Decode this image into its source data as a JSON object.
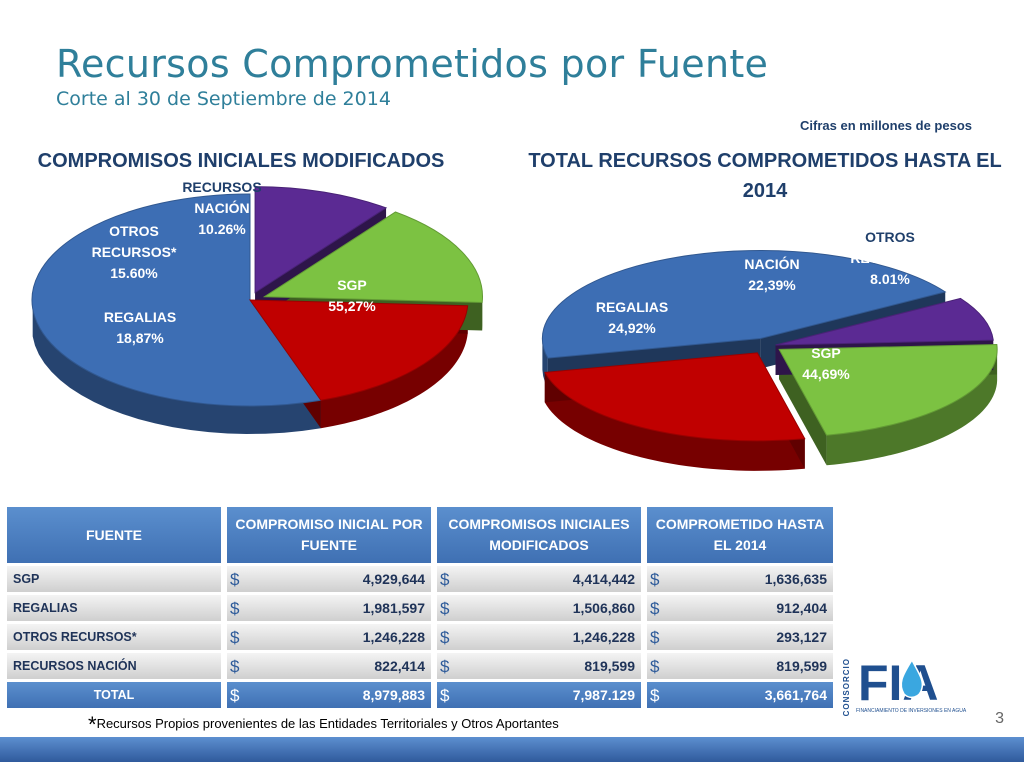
{
  "header": {
    "title": "Recursos Comprometidos por Fuente",
    "subtitle": "Corte al 30 de Septiembre de 2014",
    "units": "Cifras en millones de pesos"
  },
  "chart_data": [
    {
      "type": "pie",
      "title": "COMPROMISOS INICIALES MODIFICADOS",
      "slices": [
        {
          "name": "SGP",
          "value": 55.27,
          "label": "55,27%"
        },
        {
          "name": "REGALIAS",
          "value": 18.87,
          "label": "18,87%"
        },
        {
          "name": "OTROS RECURSOS*",
          "value": 15.6,
          "label": "15.60%"
        },
        {
          "name": "RECURSOS NACIÓN",
          "value": 10.26,
          "label": "10.26%"
        }
      ]
    },
    {
      "type": "pie",
      "title": "TOTAL RECURSOS COMPROMETIDOS HASTA EL 2014",
      "slices": [
        {
          "name": "SGP",
          "value": 44.69,
          "label": "44,69%"
        },
        {
          "name": "REGALIAS",
          "value": 24.92,
          "label": "24,92%"
        },
        {
          "name": "RECURSOS NACIÓN",
          "value": 22.39,
          "label": "22,39%"
        },
        {
          "name": "OTROS RECURSOS",
          "value": 8.01,
          "label": "8.01%"
        }
      ]
    }
  ],
  "colors": {
    "SGP": "#3d6eb4",
    "REGALIAS": "#c00000",
    "OTROS": "#7cc242",
    "NACION": "#5b2a93"
  },
  "table": {
    "headers": [
      "FUENTE",
      "COMPROMISO INICIAL POR FUENTE",
      "COMPROMISOS INICIALES MODIFICADOS",
      "COMPROMETIDO HASTA EL 2014"
    ],
    "currency": "$",
    "rows": [
      {
        "fuente": "SGP",
        "inicial": "4,929,644",
        "modificados": "4,414,442",
        "comprometido": "1,636,635"
      },
      {
        "fuente": "REGALIAS",
        "inicial": "1,981,597",
        "modificados": "1,506,860",
        "comprometido": "912,404"
      },
      {
        "fuente": "OTROS RECURSOS*",
        "inicial": "1,246,228",
        "modificados": "1,246,228",
        "comprometido": "293,127"
      },
      {
        "fuente": "RECURSOS NACIÓN",
        "inicial": "822,414",
        "modificados": "819,599",
        "comprometido": "819,599"
      }
    ],
    "total": {
      "fuente": "TOTAL",
      "inicial": "8,979,883",
      "modificados": "7,987.129",
      "comprometido": "3,661,764"
    }
  },
  "footnote": {
    "star": "*",
    "text": "Recursos Propios provenientes de las Entidades Territoriales y Otros Aportantes"
  },
  "page_number": "3",
  "logo": {
    "text": "FIA",
    "vertical": "CONSORCIO",
    "tagline": "FINANCIAMIENTO DE INVERSIONES EN AGUA",
    "icon": "water-drop-icon"
  }
}
